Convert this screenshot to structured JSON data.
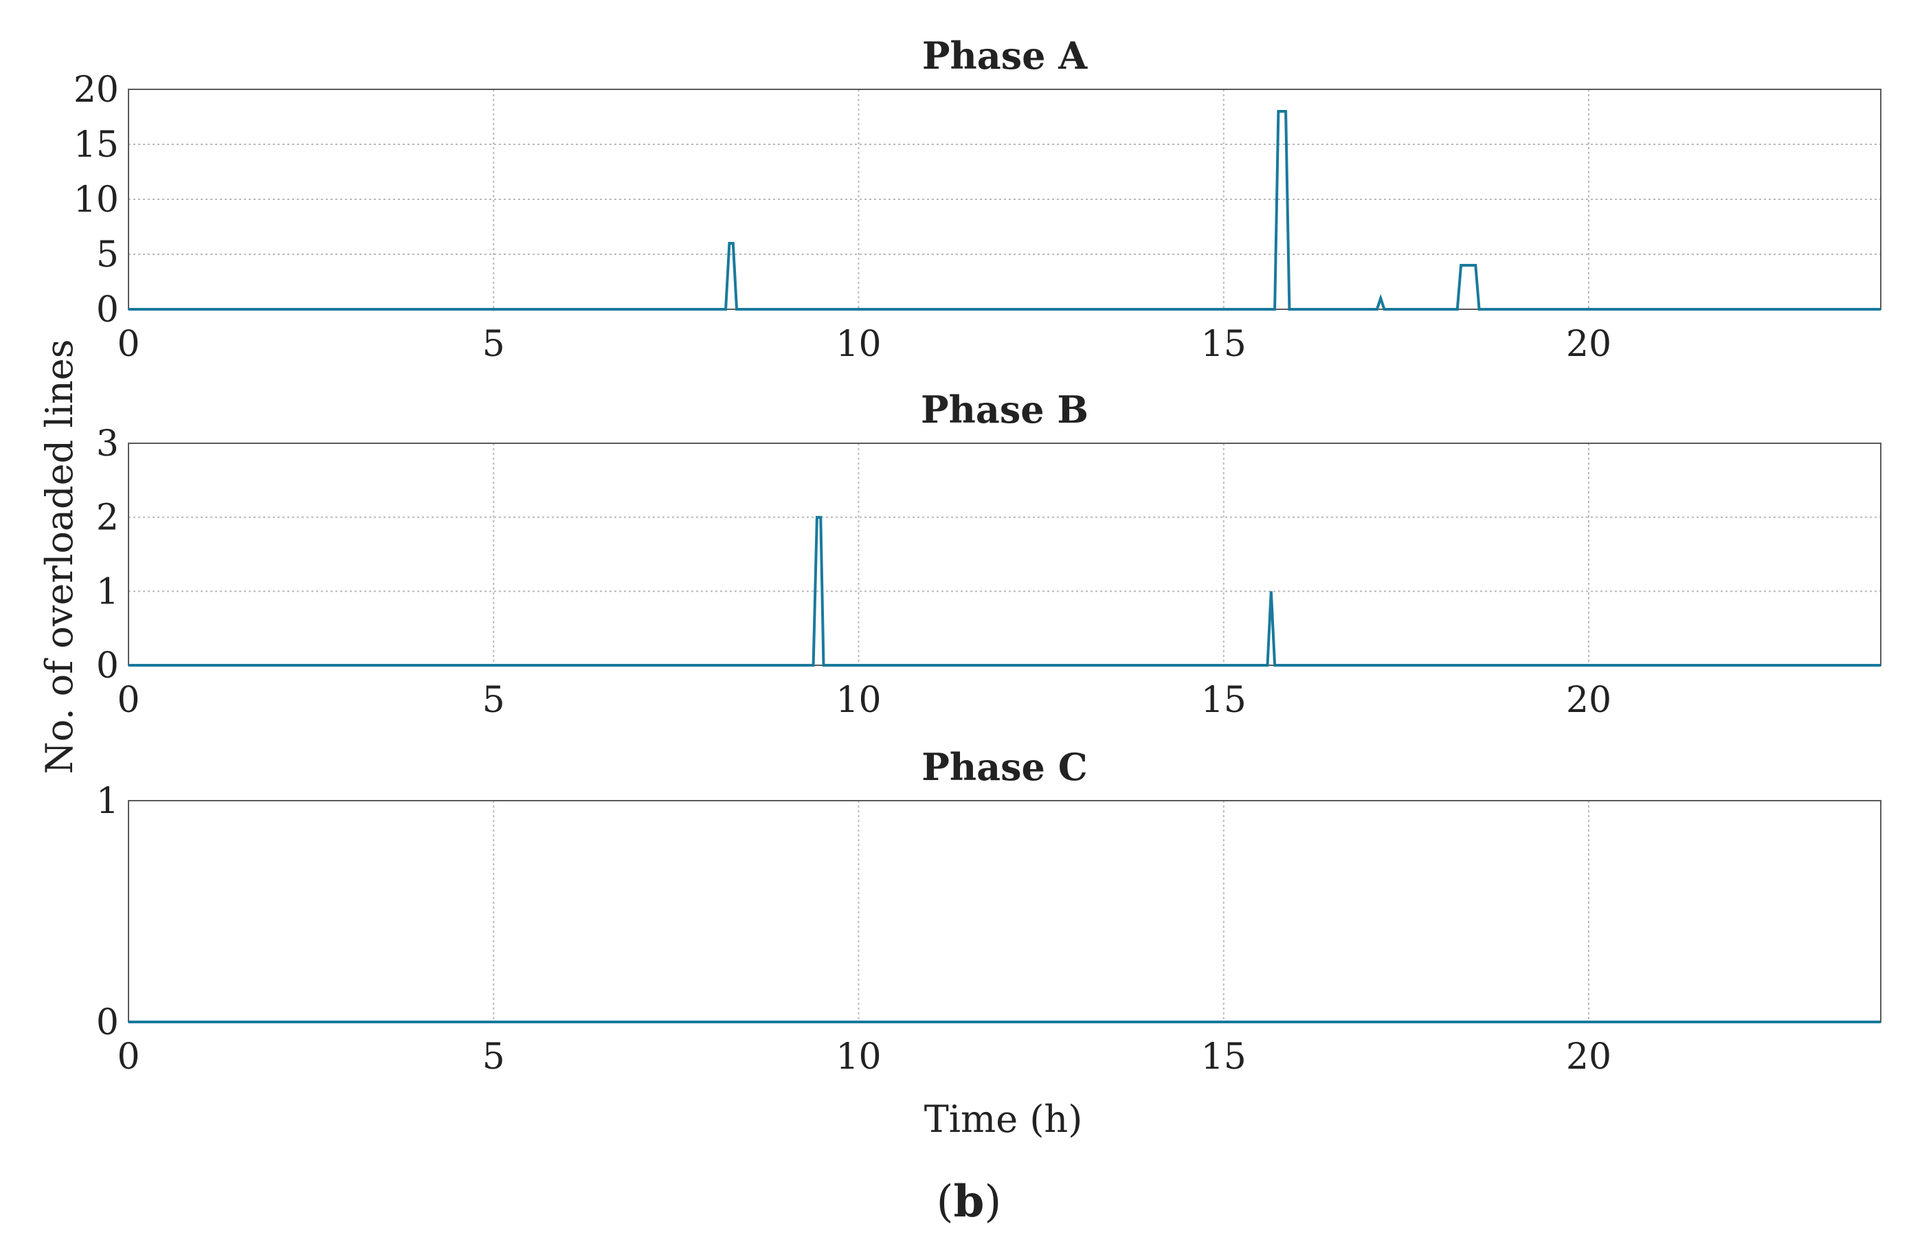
{
  "figure": {
    "caption_prefix": "(",
    "caption_letter": "b",
    "caption_suffix": ")",
    "ylabel": "No. of overloaded lines",
    "xlabel": "Time (h)",
    "line_color": "#1a7a9c",
    "grid_color": "#b8b8b8"
  },
  "chart_data": [
    {
      "type": "line",
      "title": "Phase A",
      "xlim": [
        0,
        24
      ],
      "ylim": [
        0,
        20
      ],
      "xticks": [
        0,
        5,
        10,
        15,
        20
      ],
      "yticks": [
        0,
        5,
        10,
        15,
        20
      ],
      "grid": true,
      "series": [
        {
          "name": "Phase A",
          "x": [
            0,
            8.18,
            8.23,
            8.28,
            8.33,
            15.7,
            15.75,
            15.85,
            15.9,
            17.1,
            17.15,
            17.2,
            18.2,
            18.25,
            18.45,
            18.5,
            24
          ],
          "y": [
            0,
            0,
            6,
            6,
            0,
            0,
            18,
            18,
            0,
            0,
            1,
            0,
            0,
            4,
            4,
            0,
            0
          ]
        }
      ]
    },
    {
      "type": "line",
      "title": "Phase B",
      "xlim": [
        0,
        24
      ],
      "ylim": [
        0,
        3
      ],
      "xticks": [
        0,
        5,
        10,
        15,
        20
      ],
      "yticks": [
        0,
        1,
        2,
        3
      ],
      "grid": true,
      "series": [
        {
          "name": "Phase B",
          "x": [
            0,
            9.38,
            9.43,
            9.48,
            9.52,
            15.6,
            15.65,
            15.7,
            24
          ],
          "y": [
            0,
            0,
            2,
            2,
            0,
            0,
            1,
            0,
            0
          ]
        }
      ]
    },
    {
      "type": "line",
      "title": "Phase C",
      "xlim": [
        0,
        24
      ],
      "ylim": [
        0,
        1
      ],
      "xticks": [
        0,
        5,
        10,
        15,
        20
      ],
      "yticks": [
        0,
        1
      ],
      "grid": true,
      "series": [
        {
          "name": "Phase C",
          "x": [
            0,
            24
          ],
          "y": [
            0,
            0
          ]
        }
      ]
    }
  ]
}
